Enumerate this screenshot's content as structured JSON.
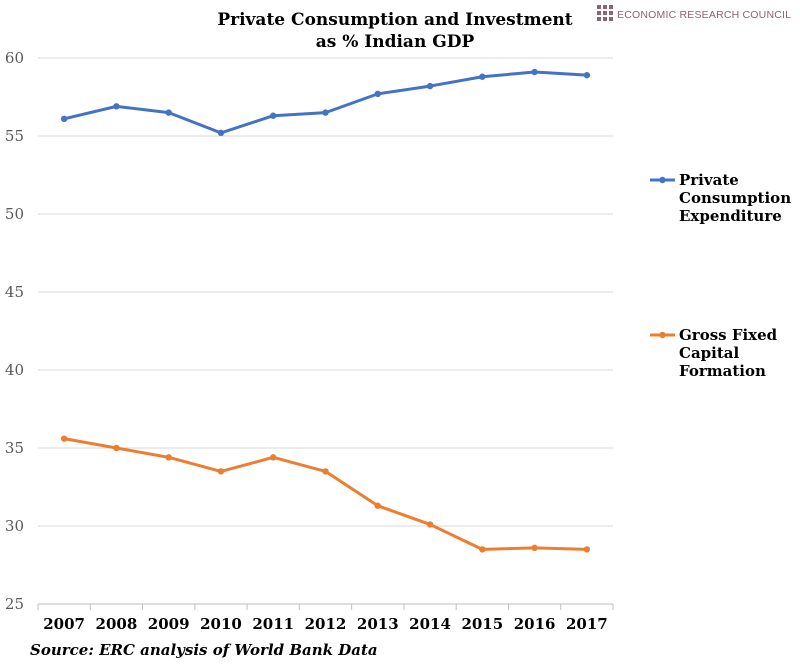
{
  "logo": {
    "text": "ECONOMIC RESEARCH COUNCIL",
    "color": "#8c6470"
  },
  "source": "Source: ERC analysis of World Bank Data",
  "chart_data": {
    "type": "line",
    "title": [
      "Private Consumption and Investment",
      "as % Indian GDP"
    ],
    "xlabel": "",
    "ylabel": "",
    "x": [
      "2007",
      "2008",
      "2009",
      "2010",
      "2011",
      "2012",
      "2013",
      "2014",
      "2015",
      "2016",
      "2017"
    ],
    "ylim": [
      25,
      60
    ],
    "yticks": [
      25,
      30,
      35,
      40,
      45,
      50,
      55,
      60
    ],
    "grid": true,
    "legend_position": "right",
    "series": [
      {
        "name": "Private Consumption Expenditure",
        "legend_lines": [
          "Private",
          "Consumption",
          "Expenditure"
        ],
        "color": "#4472c4",
        "values": [
          56.1,
          56.9,
          56.5,
          55.2,
          56.3,
          56.5,
          57.7,
          58.2,
          58.8,
          59.1,
          58.9
        ]
      },
      {
        "name": "Gross Fixed Capital Formation",
        "legend_lines": [
          "Gross Fixed",
          "Capital",
          "Formation"
        ],
        "color": "#ed7d31",
        "values": [
          35.6,
          35.0,
          34.4,
          33.5,
          34.4,
          33.5,
          31.3,
          30.1,
          28.5,
          28.6,
          28.5
        ]
      }
    ]
  }
}
